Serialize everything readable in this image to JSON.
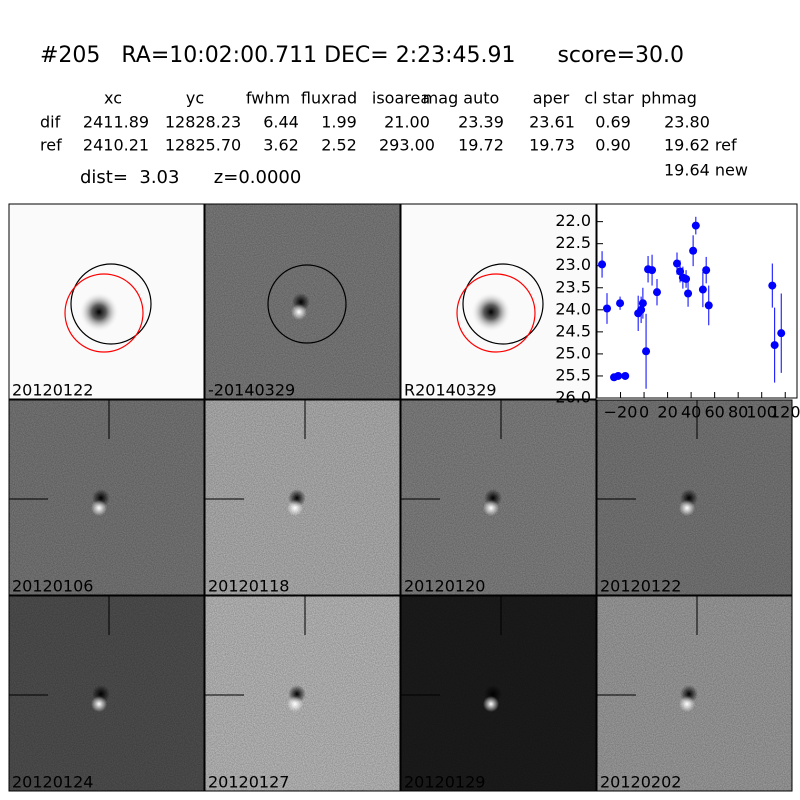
{
  "header": {
    "title": "#205   RA=10:02:00.711 DEC= 2:23:45.91      score=30.0"
  },
  "table": {
    "columns": [
      "xc",
      "yc",
      "fwhm",
      "fluxrad",
      "isoarea",
      "mag auto",
      "aper",
      "cl star",
      "phmag"
    ],
    "rows": [
      [
        "dif",
        "2411.89",
        "12828.23",
        "6.44",
        "1.99",
        "21.00",
        "23.39",
        "23.61",
        "0.69",
        "23.80"
      ],
      [
        "ref",
        "2410.21",
        "12825.70",
        "3.62",
        "2.52",
        "293.00",
        "19.72",
        "19.73",
        "0.90",
        "19.62 ref"
      ]
    ],
    "extra": "19.64 new",
    "dist": "dist=  3.03      z=0.0000"
  },
  "stamps": [
    {
      "label": "20120122"
    },
    {
      "label": "-20140329"
    },
    {
      "label": "R20140329"
    },
    {
      "label": "20120106"
    },
    {
      "label": "20120118"
    },
    {
      "label": "20120120"
    },
    {
      "label": "20120122",
      "label_color": "#ff0000"
    },
    {
      "label": "20120124"
    },
    {
      "label": "20120127"
    },
    {
      "label": "20120129"
    },
    {
      "label": "20120202"
    }
  ],
  "chart_data": {
    "type": "errorbar",
    "color": "#0000ff",
    "x": [
      -35.7,
      -31.5,
      -25.5,
      -22,
      -20.4,
      -16,
      -5,
      -2.5,
      -1,
      1.7,
      3.4,
      6.8,
      11,
      28,
      30.6,
      33,
      35.7,
      37.4,
      41.7,
      44,
      50,
      52.8,
      55,
      109,
      111,
      116.6
    ],
    "values": [
      22.97,
      23.97,
      25.53,
      25.5,
      23.85,
      25.5,
      24.08,
      24.0,
      23.85,
      24.94,
      23.08,
      23.1,
      23.6,
      22.95,
      23.13,
      23.27,
      23.3,
      23.63,
      22.66,
      22.09,
      23.54,
      23.1,
      23.9,
      23.45,
      24.8,
      24.53
    ],
    "errors": [
      0.3,
      0.35,
      0.05,
      0.05,
      0.15,
      0.05,
      0.4,
      0.3,
      0.35,
      0.85,
      0.3,
      0.35,
      0.3,
      0.25,
      0.25,
      0.25,
      0.2,
      0.3,
      0.35,
      0.2,
      0.4,
      0.3,
      0.45,
      0.5,
      0.85,
      0.9
    ],
    "xlim": [
      -40,
      130
    ],
    "ylim": [
      26.0,
      21.6
    ],
    "xticks": [
      {
        "value": -20,
        "label": "−20"
      },
      0,
      20,
      40,
      60,
      80,
      100,
      120
    ],
    "yticks": [
      {
        "value": 22.0,
        "label": "22.0"
      },
      22.5,
      {
        "value": 23.0,
        "label": "23.0"
      },
      23.5,
      {
        "value": 24.0,
        "label": "24.0"
      },
      24.5,
      {
        "value": 25.0,
        "label": "25.0"
      },
      25.5,
      {
        "value": 26.0,
        "label": "26.0"
      }
    ]
  }
}
